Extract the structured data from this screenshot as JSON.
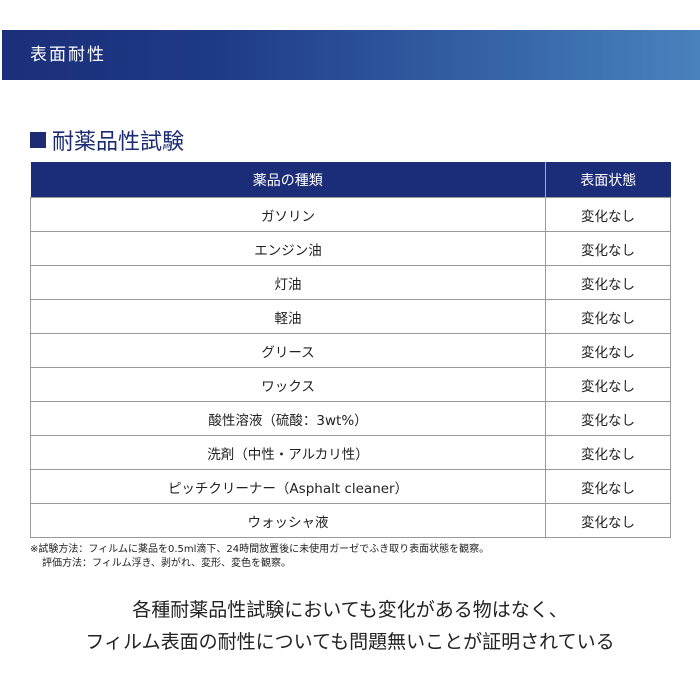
{
  "header": {
    "title": "表面耐性"
  },
  "section": {
    "title": "耐薬品性試験"
  },
  "table": {
    "headers": [
      "薬品の種類",
      "表面状態"
    ],
    "rows": [
      [
        "ガソリン",
        "変化なし"
      ],
      [
        "エンジン油",
        "変化なし"
      ],
      [
        "灯油",
        "変化なし"
      ],
      [
        "軽油",
        "変化なし"
      ],
      [
        "グリース",
        "変化なし"
      ],
      [
        "ワックス",
        "変化なし"
      ],
      [
        "酸性溶液（硫酸：3wt%）",
        "変化なし"
      ],
      [
        "洗剤（中性・アルカリ性）",
        "変化なし"
      ],
      [
        "ピッチクリーナー（Asphalt cleaner）",
        "変化なし"
      ],
      [
        "ウォッシャ液",
        "変化なし"
      ]
    ]
  },
  "notes": [
    "※試験方法：フィルムに薬品を0.5ml滴下、24時間放置後に未使用ガーゼでふき取り表面状態を観察。",
    "評価方法：フィルム浮き、剥がれ、変形、変色を観察。"
  ],
  "conclusion": [
    "各種耐薬品性試験においても変化がある物はなく、",
    "フィルム表面の耐性についても問題無いことが証明されている"
  ]
}
